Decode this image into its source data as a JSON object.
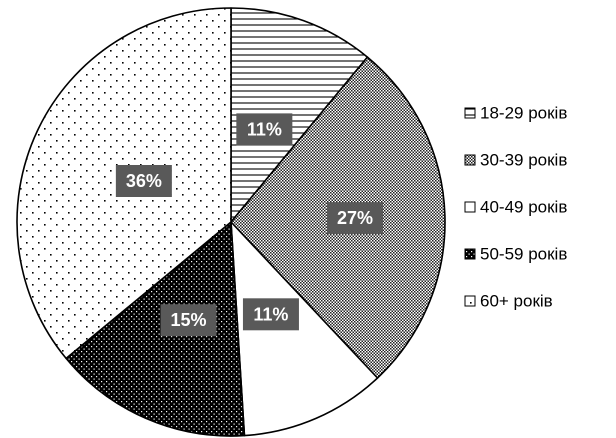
{
  "chart_data": {
    "type": "pie",
    "title": "",
    "start_angle_deg": 0,
    "direction": "clockwise",
    "legend_position": "right",
    "slices": [
      {
        "label": "18-29 років",
        "value": 11,
        "data_label": "11%",
        "pattern": "horizontal-lines",
        "color": "#000000"
      },
      {
        "label": "30-39 років",
        "value": 27,
        "data_label": "27%",
        "pattern": "dense-checker",
        "color": "#000000"
      },
      {
        "label": "40-49 років",
        "value": 11,
        "data_label": "11%",
        "pattern": "solid-white",
        "color": "#ffffff"
      },
      {
        "label": "50-59 років",
        "value": 15,
        "data_label": "15%",
        "pattern": "dark-dots",
        "color": "#000000"
      },
      {
        "label": "60+ років",
        "value": 36,
        "data_label": "36%",
        "pattern": "sparse-dots",
        "color": "#000000"
      }
    ],
    "data_label_background": "#595959",
    "data_label_color": "#ffffff"
  }
}
